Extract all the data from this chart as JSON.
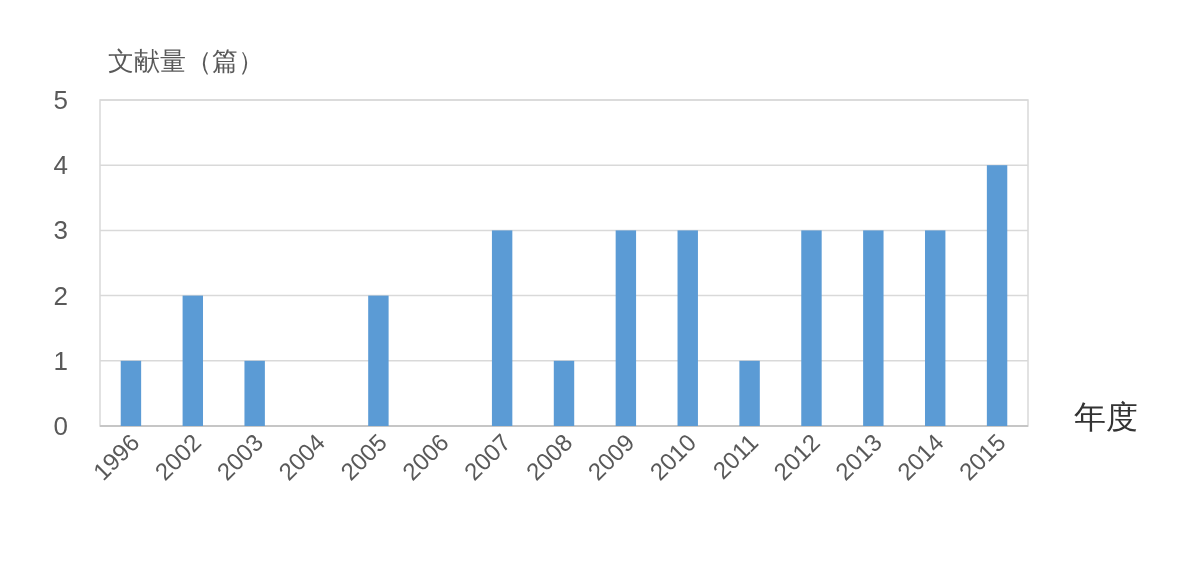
{
  "chart_data": {
    "type": "bar",
    "ylabel": "文献量（篇）",
    "xlabel": "年度",
    "categories": [
      "1996",
      "2002",
      "2003",
      "2004",
      "2005",
      "2006",
      "2007",
      "2008",
      "2009",
      "2010",
      "2011",
      "2012",
      "2013",
      "2014",
      "2015"
    ],
    "values": [
      1,
      2,
      1,
      0,
      2,
      0,
      3,
      1,
      3,
      3,
      1,
      3,
      3,
      3,
      4
    ],
    "color": "#5b9bd5",
    "ylim": [
      0,
      5
    ],
    "yticks": [
      0,
      1,
      2,
      3,
      4,
      5
    ],
    "grid": "y"
  }
}
